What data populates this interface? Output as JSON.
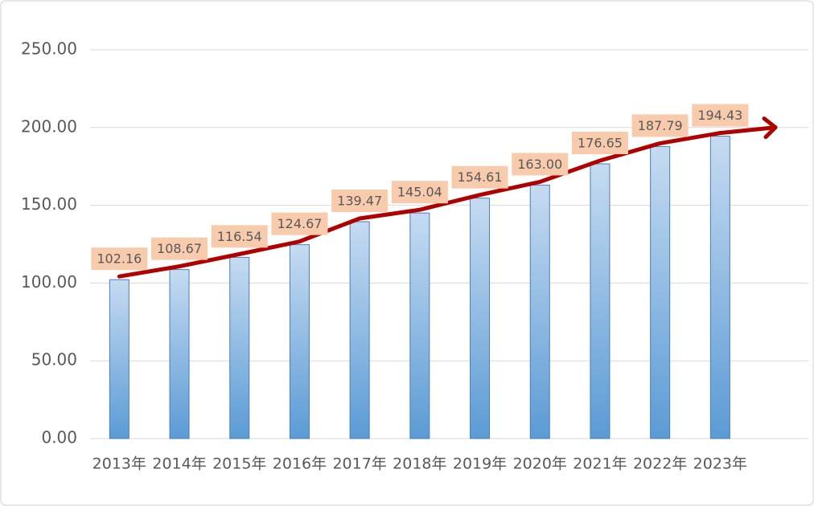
{
  "chart_data": {
    "type": "bar",
    "categories": [
      "2013年",
      "2014年",
      "2015年",
      "2016年",
      "2017年",
      "2018年",
      "2019年",
      "2020年",
      "2021年",
      "2022年",
      "2023年"
    ],
    "values": [
      102.16,
      108.67,
      116.54,
      124.67,
      139.47,
      145.04,
      154.61,
      163.0,
      176.65,
      187.79,
      194.43
    ],
    "value_labels": [
      "102.16",
      "108.67",
      "116.54",
      "124.67",
      "139.47",
      "145.04",
      "154.61",
      "163.00",
      "176.65",
      "187.79",
      "194.43"
    ],
    "color": "#5b9bd5",
    "trend_color": "#b00000",
    "ylim": [
      0,
      250
    ],
    "yticks": [
      {
        "value": 0,
        "label": "0.00"
      },
      {
        "value": 50,
        "label": "50.00"
      },
      {
        "value": 100,
        "label": "100.00"
      },
      {
        "value": 150,
        "label": "150.00"
      },
      {
        "value": 200,
        "label": "200.00"
      },
      {
        "value": 250,
        "label": "250.00"
      }
    ],
    "grid": true
  }
}
